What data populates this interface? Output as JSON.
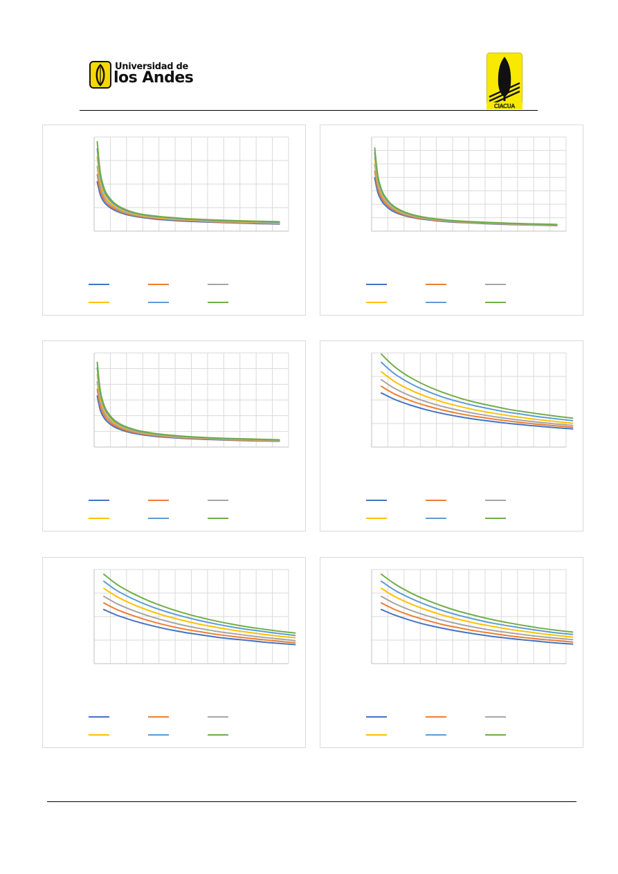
{
  "header": {
    "logo_line1": "Universidad de",
    "logo_line2": "los Andes",
    "cimoc_logo_text": "CIACUA"
  },
  "colors": {
    "series": [
      "#4472c4",
      "#ed7d31",
      "#a5a5a5",
      "#ffc000",
      "#5b9bd5",
      "#70ad47"
    ],
    "grid": "#d9d9d9",
    "axis": "#bfbfbf",
    "logo_yellow": "#f5e600"
  },
  "chart_data": [
    {
      "type": "line",
      "position": "top-left",
      "grid": true,
      "legend": "bottom",
      "y_gridlines": 4,
      "x_gridlines": 12,
      "title": "",
      "xlabel": "",
      "ylabel": "",
      "x": [
        1,
        2,
        3,
        4,
        6,
        8,
        10,
        12,
        15,
        20,
        25,
        30,
        40,
        50,
        60
      ],
      "series": [
        {
          "values": [
            2.1,
            1.55,
            1.28,
            1.12,
            0.93,
            0.81,
            0.72,
            0.66,
            0.59,
            0.51,
            0.46,
            0.42,
            0.37,
            0.33,
            0.3
          ]
        },
        {
          "values": [
            2.4,
            1.72,
            1.4,
            1.21,
            0.99,
            0.86,
            0.76,
            0.69,
            0.62,
            0.54,
            0.49,
            0.45,
            0.39,
            0.35,
            0.32
          ]
        },
        {
          "values": [
            2.75,
            1.92,
            1.53,
            1.31,
            1.06,
            0.91,
            0.8,
            0.73,
            0.65,
            0.57,
            0.51,
            0.47,
            0.41,
            0.37,
            0.34
          ]
        },
        {
          "values": [
            3.15,
            2.14,
            1.68,
            1.42,
            1.13,
            0.97,
            0.85,
            0.77,
            0.68,
            0.59,
            0.53,
            0.49,
            0.43,
            0.39,
            0.36
          ]
        },
        {
          "values": [
            3.5,
            2.34,
            1.81,
            1.52,
            1.2,
            1.02,
            0.89,
            0.8,
            0.71,
            0.62,
            0.56,
            0.51,
            0.45,
            0.41,
            0.38
          ]
        },
        {
          "values": [
            3.8,
            2.5,
            1.92,
            1.6,
            1.26,
            1.06,
            0.93,
            0.83,
            0.73,
            0.64,
            0.58,
            0.53,
            0.47,
            0.43,
            0.4
          ]
        }
      ],
      "ylim": [
        0,
        4
      ],
      "xlim": [
        0,
        63
      ]
    },
    {
      "type": "line",
      "position": "top-right",
      "grid": true,
      "legend": "bottom",
      "y_gridlines": 7,
      "x_gridlines": 12,
      "title": "",
      "xlabel": "",
      "ylabel": "",
      "x": [
        1,
        2,
        3,
        4,
        6,
        8,
        10,
        12,
        15,
        20,
        25,
        30,
        40,
        50,
        60
      ],
      "series": [
        {
          "values": [
            4.8,
            3.5,
            2.85,
            2.45,
            1.95,
            1.65,
            1.45,
            1.3,
            1.14,
            0.96,
            0.84,
            0.76,
            0.64,
            0.56,
            0.5
          ]
        },
        {
          "values": [
            5.4,
            3.85,
            3.1,
            2.65,
            2.1,
            1.76,
            1.53,
            1.37,
            1.19,
            1.0,
            0.88,
            0.79,
            0.67,
            0.58,
            0.52
          ]
        },
        {
          "values": [
            6.0,
            4.2,
            3.35,
            2.85,
            2.24,
            1.87,
            1.62,
            1.44,
            1.25,
            1.04,
            0.91,
            0.82,
            0.69,
            0.6,
            0.54
          ]
        },
        {
          "values": [
            6.6,
            4.55,
            3.58,
            3.02,
            2.36,
            1.96,
            1.7,
            1.51,
            1.3,
            1.08,
            0.95,
            0.85,
            0.72,
            0.63,
            0.57
          ]
        },
        {
          "values": [
            7.1,
            4.82,
            3.77,
            3.17,
            2.46,
            2.04,
            1.76,
            1.56,
            1.34,
            1.11,
            0.97,
            0.87,
            0.74,
            0.65,
            0.59
          ]
        },
        {
          "values": [
            7.5,
            5.04,
            3.92,
            3.28,
            2.54,
            2.1,
            1.81,
            1.6,
            1.37,
            1.13,
            0.99,
            0.89,
            0.76,
            0.67,
            0.61
          ]
        }
      ],
      "ylim": [
        0,
        8.5
      ],
      "xlim": [
        0,
        63
      ]
    },
    {
      "type": "line",
      "position": "middle-left",
      "grid": true,
      "legend": "bottom",
      "y_gridlines": 6,
      "x_gridlines": 12,
      "title": "",
      "xlabel": "",
      "ylabel": "",
      "x": [
        1,
        2,
        3,
        4,
        6,
        8,
        10,
        12,
        15,
        20,
        25,
        30,
        40,
        50,
        60
      ],
      "series": [
        {
          "values": [
            3.8,
            2.75,
            2.25,
            1.94,
            1.57,
            1.34,
            1.18,
            1.06,
            0.93,
            0.79,
            0.7,
            0.63,
            0.54,
            0.47,
            0.43
          ]
        },
        {
          "values": [
            4.3,
            3.05,
            2.46,
            2.11,
            1.69,
            1.44,
            1.26,
            1.13,
            0.99,
            0.84,
            0.74,
            0.67,
            0.57,
            0.5,
            0.45
          ]
        },
        {
          "values": [
            4.85,
            3.38,
            2.7,
            2.29,
            1.82,
            1.54,
            1.35,
            1.21,
            1.05,
            0.89,
            0.78,
            0.7,
            0.6,
            0.53,
            0.48
          ]
        },
        {
          "values": [
            5.4,
            3.7,
            2.92,
            2.46,
            1.94,
            1.63,
            1.43,
            1.28,
            1.11,
            0.93,
            0.82,
            0.74,
            0.63,
            0.55,
            0.5
          ]
        },
        {
          "values": [
            5.9,
            3.98,
            3.11,
            2.61,
            2.04,
            1.71,
            1.49,
            1.33,
            1.15,
            0.97,
            0.85,
            0.77,
            0.65,
            0.58,
            0.52
          ]
        },
        {
          "values": [
            6.3,
            4.2,
            3.26,
            2.73,
            2.12,
            1.77,
            1.54,
            1.38,
            1.19,
            1.0,
            0.88,
            0.79,
            0.67,
            0.6,
            0.54
          ]
        }
      ],
      "ylim": [
        0,
        7
      ],
      "xlim": [
        0,
        63
      ]
    },
    {
      "type": "line",
      "position": "middle-right",
      "grid": true,
      "legend": "bottom",
      "y_gridlines": 4,
      "x_gridlines": 12,
      "title": "",
      "xlabel": "",
      "ylabel": "",
      "x": [
        1,
        5,
        10,
        15,
        20,
        25,
        30,
        35,
        40,
        45,
        50,
        55,
        60
      ],
      "series": [
        {
          "values": [
            2.3,
            2.03,
            1.78,
            1.58,
            1.42,
            1.29,
            1.18,
            1.09,
            1.01,
            0.94,
            0.88,
            0.82,
            0.77
          ]
        },
        {
          "values": [
            2.58,
            2.26,
            1.97,
            1.75,
            1.57,
            1.42,
            1.3,
            1.2,
            1.11,
            1.03,
            0.96,
            0.9,
            0.84
          ]
        },
        {
          "values": [
            2.86,
            2.5,
            2.17,
            1.92,
            1.72,
            1.56,
            1.42,
            1.31,
            1.21,
            1.12,
            1.05,
            0.98,
            0.92
          ]
        },
        {
          "values": [
            3.2,
            2.79,
            2.42,
            2.14,
            1.91,
            1.73,
            1.58,
            1.45,
            1.34,
            1.24,
            1.16,
            1.08,
            1.01
          ]
        },
        {
          "values": [
            3.6,
            3.12,
            2.7,
            2.38,
            2.12,
            1.92,
            1.75,
            1.61,
            1.48,
            1.38,
            1.28,
            1.2,
            1.12
          ]
        },
        {
          "values": [
            3.95,
            3.42,
            2.95,
            2.6,
            2.32,
            2.09,
            1.9,
            1.75,
            1.61,
            1.5,
            1.4,
            1.31,
            1.23
          ]
        }
      ],
      "ylim": [
        0,
        4
      ],
      "xlim": [
        -2,
        58
      ]
    },
    {
      "type": "line",
      "position": "bottom-left",
      "grid": true,
      "legend": "bottom",
      "y_gridlines": 4,
      "x_gridlines": 12,
      "title": "",
      "xlabel": "",
      "ylabel": "",
      "x": [
        1,
        5,
        10,
        15,
        20,
        25,
        30,
        35,
        40,
        45,
        50,
        55,
        60
      ],
      "series": [
        {
          "values": [
            2.3,
            2.06,
            1.83,
            1.64,
            1.48,
            1.35,
            1.24,
            1.14,
            1.06,
            0.99,
            0.92,
            0.86,
            0.81
          ]
        },
        {
          "values": [
            2.58,
            2.3,
            2.04,
            1.82,
            1.64,
            1.49,
            1.37,
            1.26,
            1.17,
            1.09,
            1.02,
            0.95,
            0.89
          ]
        },
        {
          "values": [
            2.86,
            2.55,
            2.26,
            2.02,
            1.82,
            1.65,
            1.51,
            1.39,
            1.29,
            1.2,
            1.12,
            1.05,
            0.98
          ]
        },
        {
          "values": [
            3.2,
            2.85,
            2.52,
            2.25,
            2.03,
            1.85,
            1.69,
            1.56,
            1.44,
            1.34,
            1.25,
            1.17,
            1.1
          ]
        },
        {
          "values": [
            3.5,
            3.11,
            2.75,
            2.46,
            2.22,
            2.02,
            1.85,
            1.7,
            1.57,
            1.46,
            1.37,
            1.28,
            1.2
          ]
        },
        {
          "values": [
            3.8,
            3.37,
            2.98,
            2.66,
            2.4,
            2.18,
            1.99,
            1.83,
            1.69,
            1.57,
            1.47,
            1.38,
            1.3
          ]
        }
      ],
      "ylim": [
        0,
        4
      ],
      "xlim": [
        -2,
        58
      ]
    },
    {
      "type": "line",
      "position": "bottom-right",
      "grid": true,
      "legend": "bottom",
      "y_gridlines": 4,
      "x_gridlines": 12,
      "title": "",
      "xlabel": "",
      "ylabel": "",
      "x": [
        1,
        5,
        10,
        15,
        20,
        25,
        30,
        35,
        40,
        45,
        50,
        55,
        60
      ],
      "series": [
        {
          "values": [
            2.3,
            2.07,
            1.84,
            1.65,
            1.5,
            1.37,
            1.26,
            1.16,
            1.08,
            1.01,
            0.94,
            0.88,
            0.83
          ]
        },
        {
          "values": [
            2.58,
            2.31,
            2.05,
            1.84,
            1.66,
            1.52,
            1.39,
            1.29,
            1.19,
            1.11,
            1.04,
            0.98,
            0.92
          ]
        },
        {
          "values": [
            2.86,
            2.56,
            2.27,
            2.04,
            1.84,
            1.68,
            1.54,
            1.42,
            1.32,
            1.23,
            1.15,
            1.08,
            1.02
          ]
        },
        {
          "values": [
            3.2,
            2.86,
            2.54,
            2.28,
            2.06,
            1.88,
            1.72,
            1.59,
            1.47,
            1.37,
            1.28,
            1.2,
            1.13
          ]
        },
        {
          "values": [
            3.5,
            3.13,
            2.78,
            2.49,
            2.25,
            2.05,
            1.88,
            1.73,
            1.61,
            1.5,
            1.4,
            1.31,
            1.24
          ]
        },
        {
          "values": [
            3.8,
            3.4,
            3.01,
            2.7,
            2.44,
            2.22,
            2.04,
            1.88,
            1.74,
            1.62,
            1.51,
            1.42,
            1.34
          ]
        }
      ],
      "ylim": [
        0,
        4
      ],
      "xlim": [
        -2,
        58
      ]
    }
  ]
}
